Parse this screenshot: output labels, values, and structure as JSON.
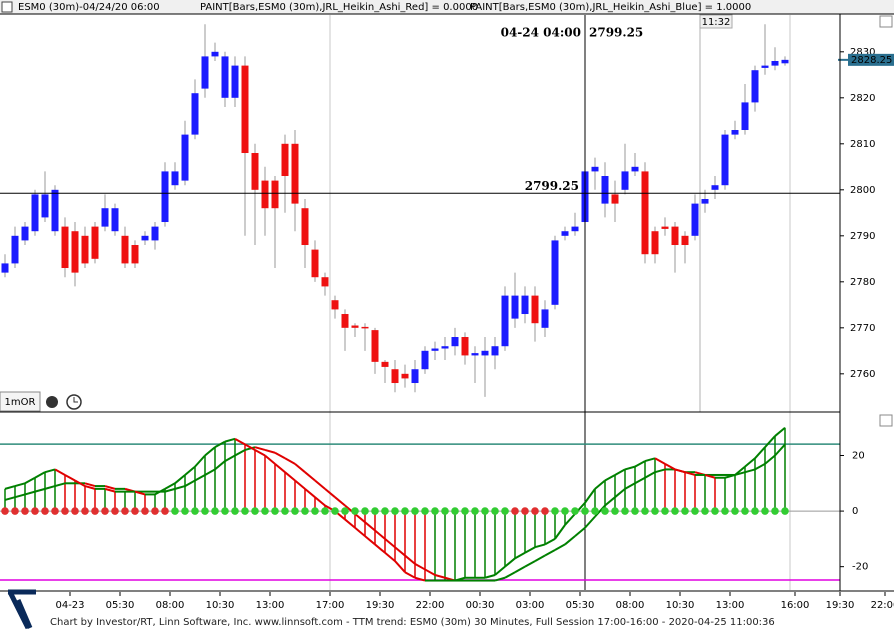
{
  "header": {
    "symbol": "ESM0 (30m)-04/24/20 06:00",
    "paint_red": "PAINT[Bars,ESM0 (30m),JRL_Heikin_Ashi_Red] = 0.0000",
    "paint_blue": "PAINT[Bars,ESM0 (30m),JRL_Heikin_Ashi_Blue] = 1.0000"
  },
  "toolbar": {
    "button": "1mOR"
  },
  "footer": "Chart by Investor/RT, Linn Software, Inc. www.linnsoft.com - TTM trend: ESM0 (30m) 30 Minutes, Full Session 17:00-16:00 - 2020-04-25 11:00:36",
  "chart_data": [
    {
      "type": "candlestick",
      "up_color": "#1a1aff",
      "down_color": "#ee1111",
      "xlim": [
        -0.5,
        88.5
      ],
      "xticks": [
        {
          "value": 6.5,
          "label": "04-23"
        },
        {
          "value": 11.5,
          "label": "05:30"
        },
        {
          "value": 16.5,
          "label": "08:00"
        },
        {
          "value": 21.5,
          "label": "10:30"
        },
        {
          "value": 26.5,
          "label": "13:00"
        },
        {
          "value": 32.5,
          "label": "17:00"
        },
        {
          "value": 37.5,
          "label": "19:30"
        },
        {
          "value": 42.5,
          "label": "22:00"
        },
        {
          "value": 47.5,
          "label": "00:30"
        },
        {
          "value": 52.5,
          "label": "03:00"
        },
        {
          "value": 57.5,
          "label": "05:30"
        },
        {
          "value": 62.5,
          "label": "08:00"
        },
        {
          "value": 67.5,
          "label": "10:30"
        },
        {
          "value": 72.5,
          "label": "13:00"
        },
        {
          "value": 79,
          "label": "16:00"
        },
        {
          "value": 83.5,
          "label": "19:30"
        },
        {
          "value": 88,
          "label": "22:00"
        }
      ],
      "ylim": [
        2751.7,
        2838
      ],
      "yticks": [
        2760,
        2770,
        2780,
        2790,
        2800,
        2810,
        2820,
        2830
      ],
      "session_lines": [
        32.5,
        78.5
      ],
      "cursor_time": {
        "value": 69.5,
        "label": "11:32"
      },
      "crosshair": {
        "x": 58,
        "y": 2799.25,
        "label": "04-24 04:00"
      },
      "open": [
        2782,
        2784,
        2789,
        2791,
        2794,
        2791,
        2792,
        2791,
        2790,
        2792,
        2792,
        2791,
        2790,
        2788,
        2789,
        2789,
        2793,
        2801,
        2802,
        2812,
        2822,
        2829,
        2820,
        2820,
        2827,
        2808,
        2802,
        2802,
        2810,
        2810,
        2796,
        2787,
        2781,
        2776,
        2773,
        2770.5,
        2770.2,
        2769.5,
        2762.6,
        2761,
        2760,
        2758,
        2761,
        2765,
        2765.5,
        2766,
        2768,
        2764,
        2764,
        2764,
        2766,
        2772,
        2773,
        2777,
        2770,
        2775,
        2790,
        2791,
        2793,
        2804,
        2797,
        2799,
        2800,
        2804,
        2804,
        2791,
        2792,
        2792,
        2790,
        2790,
        2797,
        2800,
        2801,
        2812,
        2813,
        2819,
        2826.5,
        2827,
        2827.5
      ],
      "high": [
        2786,
        2792,
        2793,
        2800,
        2804,
        2801,
        2794,
        2793,
        2792,
        2793,
        2799,
        2797,
        2792,
        2789,
        2791,
        2793,
        2806,
        2806,
        2815,
        2824,
        2836,
        2832,
        2830,
        2829,
        2829,
        2810,
        2805,
        2803,
        2812,
        2813,
        2798,
        2789,
        2782,
        2777,
        2774,
        2771,
        2771,
        2770,
        2763,
        2763,
        2762,
        2763,
        2766,
        2767,
        2768,
        2770,
        2769,
        2766,
        2768,
        2768,
        2779,
        2782,
        2779,
        2779,
        2776,
        2790,
        2792,
        2795,
        2806,
        2807,
        2806,
        2802,
        2810,
        2808,
        2806,
        2792,
        2794,
        2793,
        2791,
        2799,
        2800,
        2803,
        2813,
        2815,
        2823,
        2827,
        2836,
        2831,
        2829
      ],
      "low": [
        2781,
        2783,
        2788,
        2790,
        2793,
        2790,
        2781,
        2779,
        2783,
        2784,
        2791,
        2790,
        2783,
        2783,
        2788,
        2787,
        2792,
        2800,
        2801,
        2811,
        2820,
        2828,
        2818,
        2818,
        2790,
        2788,
        2790,
        2783,
        2795,
        2791,
        2783,
        2780,
        2777,
        2772,
        2765,
        2768,
        2765,
        2760,
        2758,
        2756,
        2757,
        2756,
        2760,
        2763,
        2763,
        2764,
        2762,
        2758,
        2755,
        2761,
        2765,
        2770,
        2771,
        2767,
        2768,
        2774,
        2789,
        2790,
        2792,
        2800,
        2794,
        2793,
        2799,
        2803,
        2784,
        2784,
        2790,
        2782,
        2784,
        2789,
        2795,
        2798,
        2800,
        2811,
        2812,
        2817,
        2825,
        2826,
        2827
      ],
      "close": [
        2784,
        2790,
        2792,
        2799,
        2799,
        2800,
        2783,
        2782,
        2784,
        2785,
        2796,
        2796,
        2784,
        2784,
        2790,
        2792,
        2804,
        2804,
        2812,
        2821,
        2829,
        2830,
        2829,
        2827,
        2808,
        2800,
        2796,
        2796,
        2803,
        2797,
        2788,
        2781,
        2779,
        2774,
        2770,
        2770,
        2770,
        2762.6,
        2761.5,
        2758,
        2759,
        2761,
        2765,
        2765.5,
        2766,
        2768,
        2764,
        2764.5,
        2765,
        2766,
        2777,
        2777,
        2777,
        2771,
        2774,
        2789,
        2791,
        2792,
        2804,
        2805,
        2803,
        2797,
        2804,
        2805,
        2786,
        2786,
        2791.5,
        2788,
        2788,
        2797,
        2798,
        2801,
        2812,
        2813,
        2819,
        2826,
        2827,
        2828,
        2828.25
      ]
    },
    {
      "type": "ttm-trend",
      "xlim": [
        -0.5,
        88.5
      ],
      "ylim": [
        -28.4,
        35.3
      ],
      "yticks": [
        -20,
        0,
        20
      ],
      "up_color": "#008000",
      "down_color": "#e00000",
      "squeeze_on_color": "#e03030",
      "squeeze_off_color": "#33cc33",
      "reference_lines": [
        {
          "value": 24.1,
          "color": "#2e8b7a"
        },
        {
          "value": -24.8,
          "color": "#e000e0"
        }
      ],
      "momentum": [
        8,
        9,
        10,
        12,
        14,
        15,
        13,
        11,
        9,
        8,
        8,
        7,
        7,
        7,
        6,
        6,
        8,
        10,
        13,
        16,
        20,
        23,
        25,
        26,
        24,
        22,
        20,
        17,
        14,
        11,
        8,
        5,
        2,
        0,
        -3,
        -6,
        -9,
        -12,
        -15,
        -18,
        -22,
        -24,
        -25,
        -25,
        -25,
        -25,
        -24,
        -24,
        -24,
        -23,
        -20,
        -17,
        -15,
        -13,
        -12,
        -10,
        -5,
        -1,
        3,
        8,
        11,
        13,
        15,
        16,
        18,
        19,
        17,
        15,
        14,
        13,
        13,
        12,
        12,
        13,
        16,
        19,
        23,
        27,
        30
      ],
      "signal": [
        4,
        5,
        6,
        7,
        8,
        9,
        10,
        10,
        10,
        9,
        9,
        8,
        8,
        7,
        7,
        7,
        7,
        8,
        9,
        11,
        13,
        15,
        18,
        20,
        22,
        23,
        22,
        21,
        19,
        17,
        14,
        11,
        8,
        5,
        2,
        -1,
        -4,
        -7,
        -10,
        -13,
        -16,
        -19,
        -21,
        -23,
        -24,
        -25,
        -25,
        -25,
        -25,
        -25,
        -24,
        -22,
        -20,
        -18,
        -16,
        -14,
        -12,
        -9,
        -6,
        -2,
        2,
        5,
        8,
        10,
        12,
        14,
        15,
        15,
        14,
        14,
        13,
        13,
        13,
        13,
        14,
        15,
        17,
        20,
        24
      ],
      "squeeze": [
        1,
        1,
        1,
        1,
        1,
        1,
        1,
        1,
        1,
        1,
        1,
        1,
        1,
        1,
        1,
        1,
        1,
        0,
        0,
        0,
        0,
        0,
        0,
        0,
        0,
        0,
        0,
        0,
        0,
        0,
        0,
        0,
        0,
        0,
        0,
        0,
        0,
        0,
        0,
        0,
        0,
        0,
        0,
        0,
        0,
        0,
        0,
        0,
        0,
        0,
        0,
        1,
        1,
        1,
        1,
        0,
        0,
        0,
        0,
        0,
        0,
        0,
        0,
        0,
        0,
        0,
        0,
        0,
        0,
        0,
        0,
        0,
        0,
        0,
        0,
        0,
        0,
        0,
        0
      ]
    }
  ]
}
